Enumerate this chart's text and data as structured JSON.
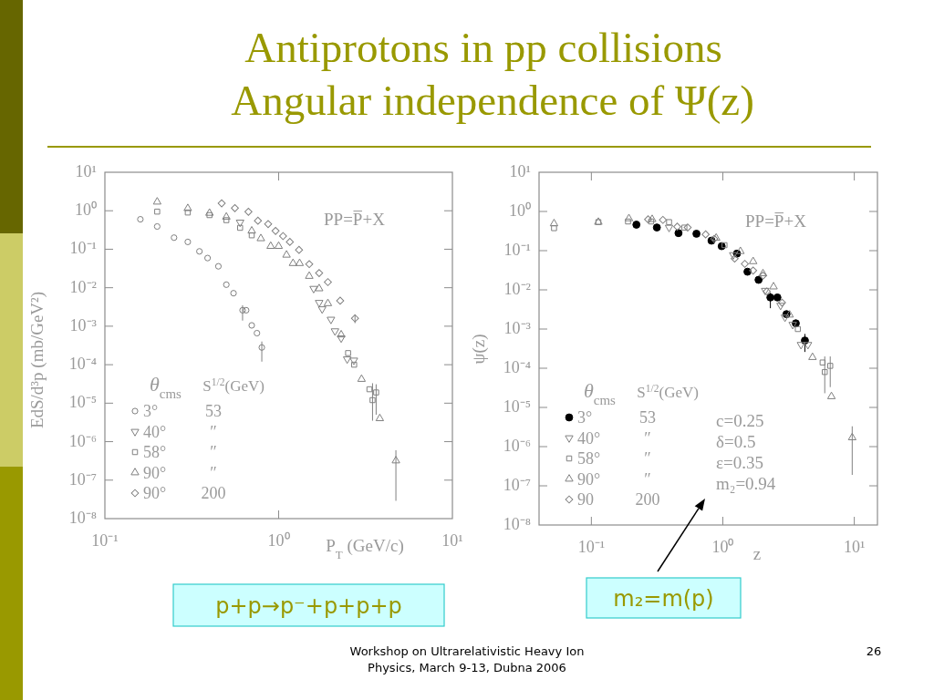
{
  "chart_data": [
    {
      "type": "other",
      "title": "Antiprotons in pp collisions",
      "subtitle": "Angular independence of Ψ(z)",
      "annotations": [
        "Workshop on Ultrarelativistic Heavy Ion Physics, March 9-13, Dubna 2006",
        "26"
      ]
    },
    {
      "type": "scatter",
      "xlabel": "P$_{T}$ (GeV/c)",
      "ylabel": "EdS/d³p (mb/GeV²)",
      "legend_title": "θ$_{cms}$ S$^{1/2}$(GeV)",
      "legend": "bottom left",
      "log": "xy",
      "xlim": [
        0.1,
        10
      ],
      "ylim": [
        1e-08,
        10
      ],
      "xticks": [
        {
          "value": 0.1,
          "label": "10⁻¹"
        },
        {
          "value": 1,
          "label": "10⁰"
        },
        {
          "value": 10,
          "label": "10¹"
        }
      ],
      "yticks": [
        {
          "value": 1e-08,
          "label": "10⁻⁸"
        },
        {
          "value": 1e-07,
          "label": "10⁻⁷"
        },
        {
          "value": 1e-06,
          "label": "10⁻⁶"
        },
        {
          "value": 1e-05,
          "label": "10⁻⁵"
        },
        {
          "value": 0.0001,
          "label": "10⁻⁴"
        },
        {
          "value": 0.001,
          "label": "10⁻³"
        },
        {
          "value": 0.01,
          "label": "10⁻²"
        },
        {
          "value": 0.1,
          "label": "10⁻¹"
        },
        {
          "value": 1,
          "label": "10⁰"
        },
        {
          "value": 10,
          "label": "10¹"
        }
      ],
      "annotations": [
        "PP=P̅+X",
        "p+p→p⁻+p+p+p"
      ],
      "series": [
        {
          "name": "3° 53",
          "color": "#808080",
          "marker": "circle-open",
          "x": [
            0.16,
            0.2,
            0.25,
            0.3,
            0.35,
            0.39,
            0.45,
            0.5,
            0.55,
            0.62,
            0.65,
            0.7,
            0.75,
            0.8
          ],
          "values": [
            0.6,
            0.39,
            0.2,
            0.155,
            0.088,
            0.059,
            0.036,
            0.012,
            0.0072,
            0.0026,
            0.0026,
            0.00105,
            0.00066,
            0.00028
          ],
          "errors": [
            null,
            null,
            null,
            null,
            null,
            null,
            null,
            null,
            null,
            [
              0.0014,
              0.0035
            ],
            null,
            null,
            null,
            [
              0.00012,
              0.0004
            ]
          ]
        },
        {
          "name": "40° ″",
          "color": "#808080",
          "marker": "triangle-down-open",
          "x": [
            0.6,
            1.59,
            1.71,
            1.78,
            2.0,
            2.11,
            2.29,
            2.48,
            2.71
          ],
          "values": [
            0.5,
            0.0095,
            0.0041,
            0.0028,
            0.0015,
            0.00075,
            0.00049,
            0.00014,
            0.00013
          ]
        },
        {
          "name": "58° ″",
          "color": "#808080",
          "marker": "square-open",
          "x": [
            0.2,
            0.3,
            0.4,
            0.5,
            0.6,
            0.7,
            2.51,
            2.72,
            3.33,
            3.47,
            3.64
          ],
          "values": [
            0.95,
            0.9,
            0.77,
            0.57,
            0.36,
            0.23,
            0.0002,
            0.0001,
            2.3e-05,
            1.2e-05,
            1.9e-05
          ],
          "errors": [
            null,
            null,
            null,
            null,
            null,
            null,
            null,
            null,
            null,
            [
              3.5e-06,
              3.3e-05
            ],
            [
              5e-06,
              3.1e-05
            ]
          ]
        },
        {
          "name": "90° ″",
          "color": "#808080",
          "marker": "triangle-open",
          "x": [
            0.2,
            0.3,
            0.4,
            0.5,
            0.7,
            0.79,
            0.9,
            1.0,
            1.11,
            1.21,
            1.32,
            1.5,
            1.71,
            1.92,
            2.29,
            3.0,
            3.82,
            4.73
          ],
          "values": [
            1.7,
            1.15,
            0.87,
            0.69,
            0.3,
            0.19,
            0.12,
            0.12,
            0.071,
            0.043,
            0.043,
            0.02,
            0.0095,
            0.0039,
            0.0006,
            4.2e-05,
            4e-06,
            3.2e-07
          ],
          "errors": [
            null,
            null,
            null,
            null,
            null,
            null,
            null,
            null,
            null,
            null,
            null,
            null,
            null,
            null,
            null,
            null,
            null,
            [
              2.9e-08,
              6e-07
            ]
          ]
        },
        {
          "name": "90° 200",
          "color": "#808080",
          "marker": "diamond-open",
          "x": [
            0.47,
            0.56,
            0.67,
            0.76,
            0.87,
            0.96,
            1.06,
            1.16,
            1.31,
            1.5,
            1.71,
            1.92,
            2.26,
            2.75
          ],
          "values": [
            1.56,
            1.17,
            0.94,
            0.55,
            0.45,
            0.3,
            0.22,
            0.155,
            0.096,
            0.041,
            0.024,
            0.014,
            0.0046,
            0.0016
          ],
          "errors": [
            null,
            null,
            null,
            null,
            null,
            null,
            null,
            null,
            null,
            null,
            null,
            null,
            null,
            [
              0.0012,
              0.002
            ]
          ]
        }
      ]
    },
    {
      "type": "scatter",
      "xlabel": "z",
      "ylabel": "ψ(z)",
      "legend_title": "θ$_{cms}$ S$^{1/2}$(GeV)",
      "legend": "bottom left",
      "log": "xy",
      "xlim": [
        0.04,
        15
      ],
      "ylim": [
        1e-08,
        10
      ],
      "xticks": [
        {
          "value": 0.1,
          "label": "10⁻¹"
        },
        {
          "value": 1,
          "label": "10⁰"
        },
        {
          "value": 10,
          "label": "10¹"
        }
      ],
      "yticks": [
        {
          "value": 1e-08,
          "label": "10⁻⁸"
        },
        {
          "value": 1e-07,
          "label": "10⁻⁷"
        },
        {
          "value": 1e-06,
          "label": "10⁻⁶"
        },
        {
          "value": 1e-05,
          "label": "10⁻⁵"
        },
        {
          "value": 0.0001,
          "label": "10⁻⁴"
        },
        {
          "value": 0.001,
          "label": "10⁻³"
        },
        {
          "value": 0.01,
          "label": "10⁻²"
        },
        {
          "value": 0.1,
          "label": "10⁻¹"
        },
        {
          "value": 1,
          "label": "10⁰"
        },
        {
          "value": 10,
          "label": "10¹"
        }
      ],
      "annotations": [
        "PP=P̅+X",
        "c=0.25",
        "δ=0.5",
        "ε=0.35",
        "m₂=0.94",
        "m₂=m(p)"
      ],
      "series": [
        {
          "name": "3° 53",
          "color": "#000000",
          "marker": "circle",
          "x": [
            0.22,
            0.315,
            0.46,
            0.63,
            0.82,
            0.98,
            1.28,
            1.54,
            1.87,
            2.3,
            2.6,
            3.05,
            3.59,
            4.21
          ],
          "values": [
            0.46,
            0.39,
            0.28,
            0.27,
            0.18,
            0.13,
            0.084,
            0.029,
            0.018,
            0.0064,
            0.0064,
            0.0024,
            0.0014,
            0.00051
          ],
          "errors": [
            null,
            null,
            null,
            null,
            null,
            null,
            null,
            null,
            null,
            [
              0.0034,
              0.0084
            ],
            null,
            null,
            null,
            [
              0.00026,
              0.00075
            ]
          ]
        },
        {
          "name": "40° ″",
          "color": "#808080",
          "marker": "triangle-down-open",
          "x": [
            0.39,
            1.2,
            2.1,
            2.75,
            2.97,
            3.4,
            3.93,
            4.44
          ],
          "values": [
            0.39,
            0.078,
            0.0096,
            0.004,
            0.002,
            0.0013,
            0.0004,
            0.0004
          ]
        },
        {
          "name": "58° ″",
          "color": "#808080",
          "marker": "square-open",
          "x": [
            0.052,
            0.113,
            0.19,
            0.285,
            0.39,
            0.51,
            1.03,
            3.72,
            5.74,
            5.96,
            6.56
          ],
          "values": [
            0.375,
            0.535,
            0.555,
            0.555,
            0.535,
            0.388,
            0.138,
            0.001,
            0.00014,
            8e-05,
            0.000115
          ],
          "errors": [
            null,
            null,
            null,
            null,
            null,
            null,
            null,
            null,
            null,
            [
              2.3e-05,
              0.0002
            ],
            [
              3.3e-05,
              0.0002
            ]
          ]
        },
        {
          "name": "90° ″",
          "color": "#808080",
          "marker": "triangle-open",
          "x": [
            0.052,
            0.113,
            0.193,
            0.29,
            0.89,
            1.36,
            1.7,
            2.02,
            2.43,
            3.22,
            4.81,
            6.7,
            9.64
          ],
          "values": [
            0.49,
            0.535,
            0.66,
            0.63,
            0.21,
            0.096,
            0.053,
            0.026,
            0.012,
            0.0023,
            0.00019,
            1.9e-05,
            1.7e-06
          ],
          "errors": [
            null,
            null,
            null,
            null,
            null,
            null,
            null,
            null,
            null,
            null,
            null,
            null,
            [
              1.9e-07,
              3.3e-06
            ]
          ]
        },
        {
          "name": "90 200",
          "color": "#808080",
          "marker": "diamond-open",
          "x": [
            0.27,
            0.35,
            0.45,
            0.54,
            0.74,
            0.86,
            1.23,
            1.47,
            1.7,
            2.02,
            2.16,
            2.82
          ],
          "values": [
            0.63,
            0.61,
            0.41,
            0.39,
            0.26,
            0.2,
            0.063,
            0.046,
            0.031,
            0.023,
            0.0091,
            0.0047
          ]
        }
      ]
    }
  ]
}
